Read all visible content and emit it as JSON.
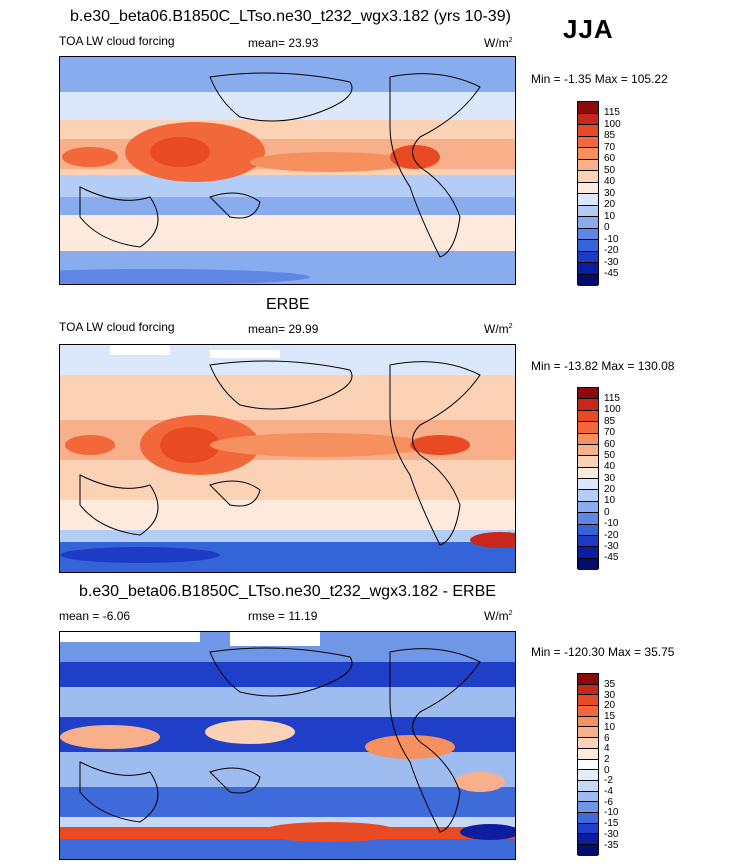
{
  "season": "JJA",
  "panels": [
    {
      "title": "b.e30_beta06.B1850C_LTso.ne30_t232_wgx3.182 (yrs 10-39)",
      "field": "TOA LW cloud forcing",
      "stat": "mean=  23.93",
      "units": "W/m",
      "units_exp": "2",
      "minmax": "Min =  -1.35 Max = 105.22",
      "levels": [
        "115",
        "100",
        "85",
        "70",
        "60",
        "50",
        "40",
        "30",
        "20",
        "10",
        "0",
        "-10",
        "-20",
        "-30",
        "-45"
      ]
    },
    {
      "title": "ERBE",
      "field": "TOA LW cloud forcing",
      "stat": "mean=  29.99",
      "units": "W/m",
      "units_exp": "2",
      "minmax": "Min = -13.82 Max = 130.08",
      "levels": [
        "115",
        "100",
        "85",
        "70",
        "60",
        "50",
        "40",
        "30",
        "20",
        "10",
        "0",
        "-10",
        "-20",
        "-30",
        "-45"
      ]
    },
    {
      "title": "b.e30_beta06.B1850C_LTso.ne30_t232_wgx3.182 - ERBE",
      "field": "mean =  -6.06",
      "stat": "rmse =  11.19",
      "units": "W/m",
      "units_exp": "2",
      "minmax": "Min = -120.30 Max =  35.75",
      "levels": [
        "35",
        "30",
        "20",
        "15",
        "10",
        "6",
        "4",
        "2",
        "0",
        "-2",
        "-4",
        "-6",
        "-10",
        "-15",
        "-30",
        "-35"
      ]
    }
  ],
  "colors": {
    "abs": [
      "#8b0a0a",
      "#c8281c",
      "#e84a24",
      "#f2683a",
      "#f6905e",
      "#f8b08a",
      "#fbd2b6",
      "#fdeadc",
      "#dbe8fb",
      "#b4cdf6",
      "#89acee",
      "#5e87e4",
      "#3563d8",
      "#1c3cc6",
      "#0c1e9e",
      "#060d6e"
    ],
    "diff": [
      "#8b0a0a",
      "#c8281c",
      "#e84a24",
      "#f2683a",
      "#f6905e",
      "#f8b08a",
      "#fbd2b6",
      "#fdeadc",
      "#ffffff",
      "#e4edfb",
      "#c6d8f6",
      "#9ebcf0",
      "#7096e6",
      "#3f6ad9",
      "#1f3fc8",
      "#0c1e9e",
      "#060d6e"
    ]
  }
}
